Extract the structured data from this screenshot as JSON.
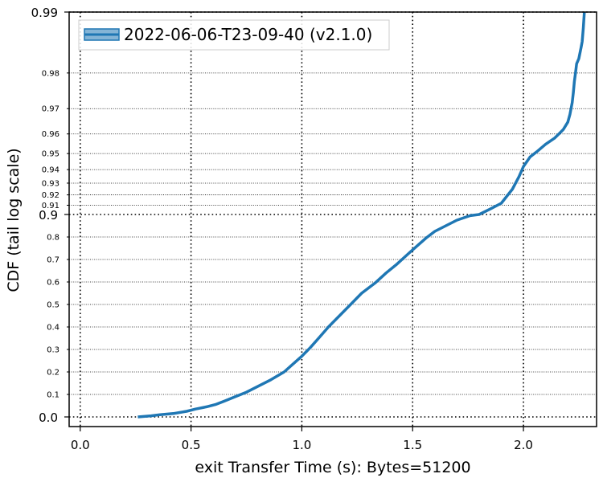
{
  "chart_data": {
    "type": "line",
    "title": "",
    "xlabel": "exit Transfer Time (s): Bytes=51200",
    "ylabel": "CDF (tail log scale)",
    "xlim": [
      -0.05,
      2.33
    ],
    "x_ticks": [
      0.0,
      0.5,
      1.0,
      1.5,
      2.0
    ],
    "x_tick_labels": [
      "0.0",
      "0.5",
      "1.0",
      "1.5",
      "2.0"
    ],
    "y_scale": "tail-log (linear below 0.9, -log10(1-p) above 0.9)",
    "y_major_ticks": [
      0.0,
      0.9,
      0.99
    ],
    "y_major_tick_labels": [
      "0.0",
      "0.9",
      "0.99"
    ],
    "y_minor_ticks": [
      0.1,
      0.2,
      0.3,
      0.4,
      0.5,
      0.6,
      0.7,
      0.8,
      0.91,
      0.92,
      0.93,
      0.94,
      0.95,
      0.96,
      0.97,
      0.98
    ],
    "y_minor_tick_labels": [
      "0.1",
      "0.2",
      "0.3",
      "0.4",
      "0.5",
      "0.6",
      "0.7",
      "0.8",
      "0.91",
      "0.92",
      "0.93",
      "0.94",
      "0.95",
      "0.96",
      "0.97",
      "0.98"
    ],
    "grid": true,
    "legend_position": "top-left",
    "series": [
      {
        "name": "2022-06-06-T23-09-40 (v2.1.0)",
        "color": "#1f77b4",
        "points": [
          [
            0.26,
            0.0
          ],
          [
            0.32,
            0.005
          ],
          [
            0.36,
            0.01
          ],
          [
            0.42,
            0.015
          ],
          [
            0.48,
            0.025
          ],
          [
            0.52,
            0.035
          ],
          [
            0.57,
            0.045
          ],
          [
            0.61,
            0.055
          ],
          [
            0.65,
            0.07
          ],
          [
            0.7,
            0.09
          ],
          [
            0.75,
            0.11
          ],
          [
            0.8,
            0.135
          ],
          [
            0.86,
            0.165
          ],
          [
            0.92,
            0.2
          ],
          [
            0.96,
            0.235
          ],
          [
            1.0,
            0.27
          ],
          [
            1.04,
            0.31
          ],
          [
            1.08,
            0.355
          ],
          [
            1.12,
            0.4
          ],
          [
            1.17,
            0.45
          ],
          [
            1.22,
            0.5
          ],
          [
            1.27,
            0.55
          ],
          [
            1.33,
            0.595
          ],
          [
            1.38,
            0.64
          ],
          [
            1.43,
            0.68
          ],
          [
            1.48,
            0.725
          ],
          [
            1.52,
            0.76
          ],
          [
            1.56,
            0.795
          ],
          [
            1.6,
            0.825
          ],
          [
            1.65,
            0.85
          ],
          [
            1.7,
            0.875
          ],
          [
            1.76,
            0.895
          ],
          [
            1.8,
            0.9
          ],
          [
            1.85,
            0.906
          ],
          [
            1.9,
            0.912
          ],
          [
            1.95,
            0.925
          ],
          [
            1.98,
            0.935
          ],
          [
            2.0,
            0.942
          ],
          [
            2.03,
            0.948
          ],
          [
            2.06,
            0.951
          ],
          [
            2.1,
            0.955
          ],
          [
            2.14,
            0.958
          ],
          [
            2.16,
            0.96
          ],
          [
            2.18,
            0.962
          ],
          [
            2.2,
            0.965
          ],
          [
            2.21,
            0.968
          ],
          [
            2.22,
            0.972
          ],
          [
            2.225,
            0.975
          ],
          [
            2.23,
            0.978
          ],
          [
            2.235,
            0.98
          ],
          [
            2.24,
            0.982
          ],
          [
            2.25,
            0.983
          ],
          [
            2.26,
            0.985
          ],
          [
            2.265,
            0.986
          ],
          [
            2.27,
            0.988
          ],
          [
            2.275,
            0.99
          ]
        ]
      }
    ]
  }
}
